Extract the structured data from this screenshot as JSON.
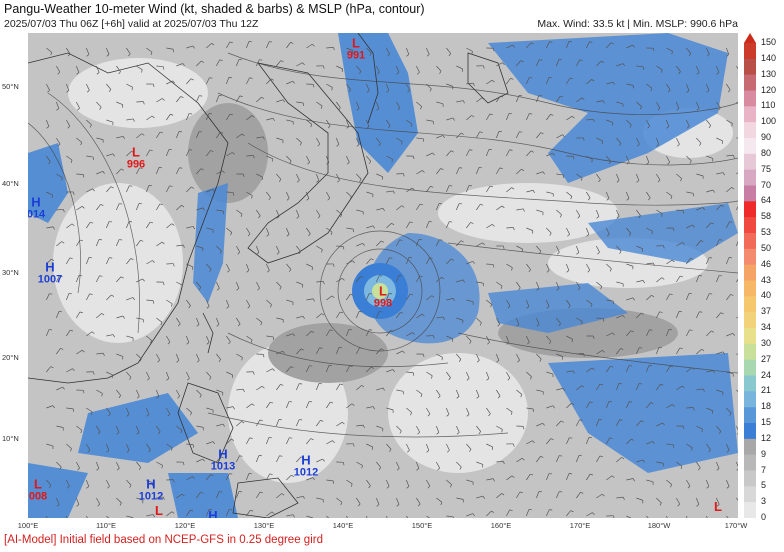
{
  "header": {
    "title": "Pangu-Weather 10-meter Wind (kt, shaded & barbs) & MSLP (hPa, contour)",
    "subtitle": "2025/07/03 Thu 06Z [+6h] valid at 2025/07/03 Thu 12Z",
    "stats": "Max. Wind: 33.5 kt | Min. MSLP: 990.6 hPa"
  },
  "footer": "[AI-Model] Initial field based on NCEP-GFS in 0.25 degree gird",
  "lat_labels": [
    "50°N",
    "40°N",
    "30°N",
    "20°N",
    "10°N"
  ],
  "lon_labels": [
    "100°E",
    "110°E",
    "120°E",
    "130°E",
    "140°E",
    "150°E",
    "160°E",
    "170°E",
    "180°W",
    "170°W"
  ],
  "colorbar": {
    "labels": [
      "150",
      "140",
      "130",
      "120",
      "110",
      "100",
      "90",
      "80",
      "75",
      "70",
      "64",
      "58",
      "53",
      "50",
      "46",
      "43",
      "40",
      "37",
      "34",
      "30",
      "27",
      "24",
      "21",
      "18",
      "15",
      "12",
      "9",
      "7",
      "5",
      "3",
      "0"
    ],
    "colors": [
      "#cc3a2a",
      "#b85048",
      "#c86a72",
      "#d88aa0",
      "#e8b4c6",
      "#f2d6e0",
      "#f6e8ef",
      "#e6c8d6",
      "#d8a8c2",
      "#c87ea4",
      "#ee2a2a",
      "#f04a40",
      "#f26a58",
      "#f48a6e",
      "#f6a466",
      "#f6b866",
      "#f6c86e",
      "#f2d27a",
      "#e8e08a",
      "#c8e09a",
      "#a8d8b0",
      "#8ac8d0",
      "#78b4dc",
      "#5898d8",
      "#3a7ed6",
      "#a8a8a8",
      "#b8b8b8",
      "#c8c8c8",
      "#d8d8d8",
      "#e8e8e8"
    ]
  },
  "pressure_centers": [
    {
      "type": "L",
      "value": "991"
    },
    {
      "type": "L",
      "value": "996"
    },
    {
      "type": "H",
      "value": "014"
    },
    {
      "type": "H",
      "value": "1007"
    },
    {
      "type": "L",
      "value": "998"
    },
    {
      "type": "H",
      "value": "1013"
    },
    {
      "type": "H",
      "value": "1012"
    },
    {
      "type": "H",
      "value": "1012"
    },
    {
      "type": "L",
      "value": "008"
    },
    {
      "type": "L",
      "value": ""
    },
    {
      "type": "H",
      "value": ""
    },
    {
      "type": "L",
      "value": ""
    }
  ]
}
